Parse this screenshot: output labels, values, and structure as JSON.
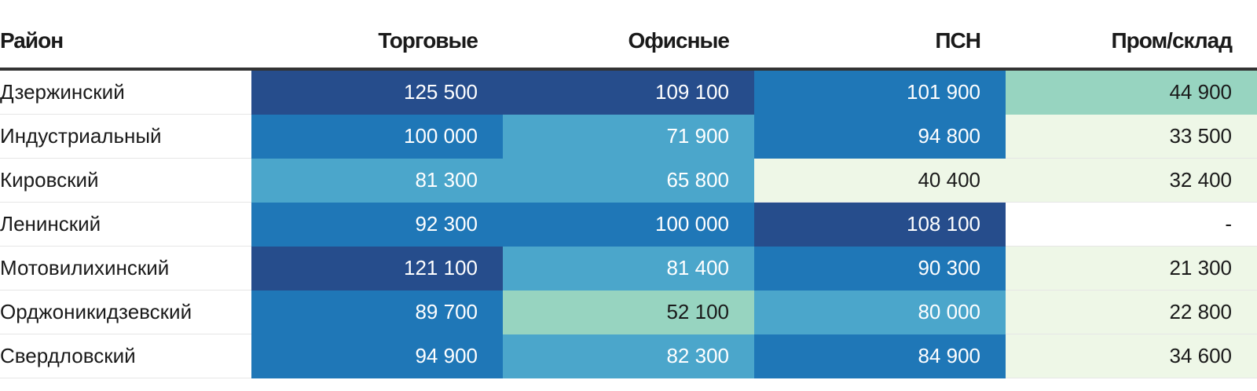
{
  "chart_data": {
    "type": "heatmap",
    "header": {
      "row_label": "Район",
      "columns": [
        "Торговые",
        "Офисные",
        "ПСН",
        "Пром/склад"
      ]
    },
    "rows": [
      "Дзержинский",
      "Индустриальный",
      "Кировский",
      "Ленинский",
      "Мотовилихинский",
      "Орджоникидзевский",
      "Свердловский"
    ],
    "values": [
      [
        125500,
        109100,
        101900,
        44900
      ],
      [
        100000,
        71900,
        94800,
        33500
      ],
      [
        81300,
        65800,
        40400,
        32400
      ],
      [
        92300,
        100000,
        108100,
        null
      ],
      [
        121100,
        81400,
        90300,
        21300
      ],
      [
        89700,
        52100,
        80000,
        22800
      ],
      [
        94900,
        82300,
        84900,
        34600
      ]
    ],
    "missing_label": "-",
    "color_scale": {
      "bins": [
        {
          "min": 105000,
          "color": "#264d8c",
          "text": "#ffffff"
        },
        {
          "min": 84000,
          "color": "#1f77b7",
          "text": "#ffffff"
        },
        {
          "min": 63000,
          "color": "#4ba6cb",
          "text": "#ffffff"
        },
        {
          "min": 42000,
          "color": "#97d4c0",
          "text": "#1a1a1a"
        },
        {
          "min": 0,
          "color": "#eef7e7",
          "text": "#1a1a1a"
        }
      ],
      "missing_color": "#ffffff"
    }
  }
}
